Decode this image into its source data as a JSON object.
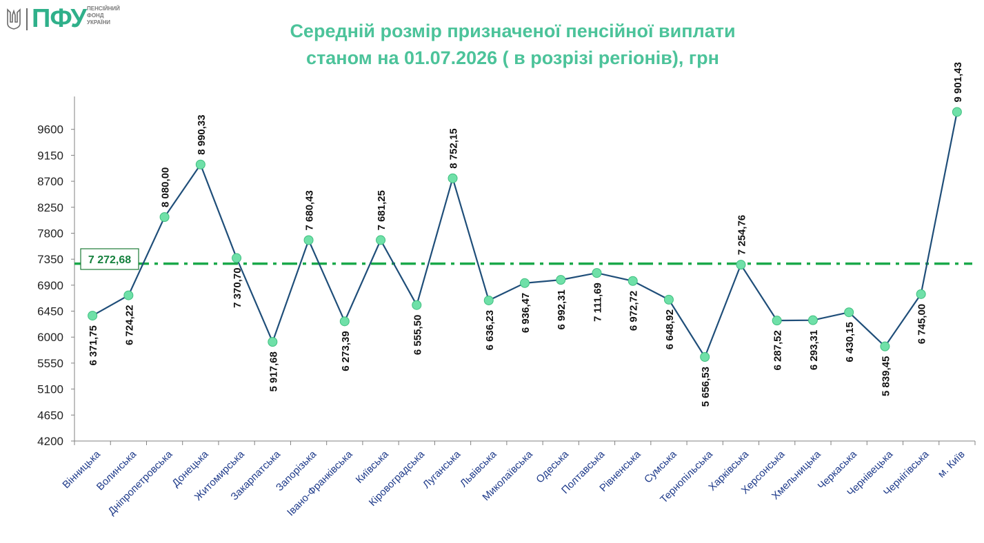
{
  "logo": {
    "name": "ПФУ",
    "subtitle": [
      "ПЕНСІЙНИЙ",
      "ФОНД",
      "УКРАЇНИ"
    ]
  },
  "colors": {
    "line": "#1f4e79",
    "marker": "#6fe0a8",
    "average": "#1aa84a",
    "title": "#4cc39a",
    "avg_label": "#15803d"
  },
  "chart_data": {
    "type": "line",
    "title_lines": [
      "Середній розмір призначеної пенсійної виплати",
      "станом на 01.07.2026 ( в розрізі регіонів), грн"
    ],
    "xlabel": "",
    "ylabel": "",
    "ylim": [
      4200,
      10050
    ],
    "yticks": [
      4200,
      4650,
      5100,
      5550,
      6000,
      6450,
      6900,
      7350,
      7800,
      8250,
      8700,
      9150,
      9600
    ],
    "grid": false,
    "categories": [
      "Вінницька",
      "Волинська",
      "Дніпропетровська",
      "Донецька",
      "Житомирська",
      "Закарпатська",
      "Запорізька",
      "Івано-Франківська",
      "Київська",
      "Кіровоградська",
      "Луганська",
      "Львівська",
      "Миколаївська",
      "Одеська",
      "Полтавська",
      "Рівненська",
      "Сумська",
      "Тернопільська",
      "Харківська",
      "Херсонська",
      "Хмельницька",
      "Черкаська",
      "Чернівецька",
      "Чернігівська",
      "м. Київ"
    ],
    "series": [
      {
        "values": [
          6371.75,
          6724.22,
          8080.0,
          8990.33,
          7370.7,
          5917.68,
          7680.43,
          6273.39,
          7681.25,
          6555.5,
          8752.15,
          6636.23,
          6936.47,
          6992.31,
          7111.69,
          6972.72,
          6648.92,
          5656.53,
          7254.76,
          6287.52,
          6293.31,
          6430.15,
          5839.45,
          6745.0,
          9901.43
        ],
        "labels": [
          "6 371,75",
          "6 724,22",
          "8 080,00",
          "8 990,33",
          "7 370,70",
          "5 917,68",
          "7 680,43",
          "6 273,39",
          "7 681,25",
          "6 555,50",
          "8 752,15",
          "6 636,23",
          "6 936,47",
          "6 992,31",
          "7 111,69",
          "6 972,72",
          "6 648,92",
          "5 656,53",
          "7 254,76",
          "6 287,52",
          "6 293,31",
          "6 430,15",
          "5 839,45",
          "6 745,00",
          "9 901,43"
        ],
        "label_positions": [
          "below",
          "below",
          "above",
          "above",
          "below",
          "below",
          "above",
          "below",
          "above",
          "below",
          "above",
          "below",
          "below",
          "below",
          "below",
          "below",
          "below",
          "below",
          "above",
          "below",
          "below",
          "below",
          "below",
          "below",
          "above"
        ]
      }
    ],
    "average": {
      "value": 7272.68,
      "label": "7 272,68"
    }
  }
}
